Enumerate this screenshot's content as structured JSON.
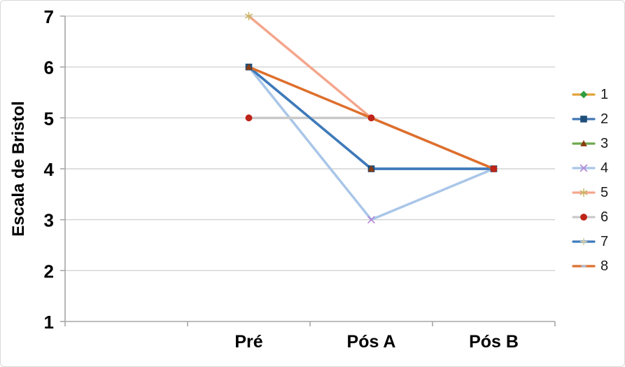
{
  "frame": {
    "background": "#FFFFFF",
    "border_color": "#D8D8D8"
  },
  "chart_data": {
    "type": "line",
    "title": "",
    "xlabel": "",
    "ylabel": "Escala de Bristol",
    "categories": [
      "",
      "Pré",
      "Pós A",
      "Pós B"
    ],
    "ylim": [
      1,
      7
    ],
    "yticks": [
      1,
      2,
      3,
      4,
      5,
      6,
      7
    ],
    "grid": "horizontal",
    "legend_position": "right",
    "axis_color": "#A6A6A6",
    "grid_color": "#C9C9C9",
    "text_color": "#000000",
    "legend_text_color": "#1A1A1A",
    "series": [
      {
        "name": "1",
        "line": "#E2A33B",
        "marker": "diamond",
        "marker_color": "#2F9E3E",
        "values": [
          null,
          null,
          null,
          null
        ],
        "line_visible": false,
        "markers_at": []
      },
      {
        "name": "2",
        "line": "#4176B4",
        "marker": "square",
        "marker_color": "#1F4E79",
        "values": [
          null,
          6,
          4,
          4
        ],
        "line_visible": true,
        "markers_at": [
          1,
          2,
          3
        ]
      },
      {
        "name": "3",
        "line": "#6FA84F",
        "marker": "triangle",
        "marker_color": "#8A3A0E",
        "values": [
          null,
          6,
          4,
          4
        ],
        "line_visible": false,
        "markers_at": [
          1,
          2,
          3
        ]
      },
      {
        "name": "4",
        "line": "#A9C6E8",
        "marker": "x",
        "marker_color": "#B287D7",
        "values": [
          null,
          6,
          3,
          4
        ],
        "line_visible": true,
        "markers_at": [
          2
        ]
      },
      {
        "name": "5",
        "line": "#F4A68D",
        "marker": "asterisk",
        "marker_color": "#C8B464",
        "values": [
          null,
          7,
          5,
          4
        ],
        "line_visible": true,
        "markers_at": [
          1
        ]
      },
      {
        "name": "6",
        "line": "#C9C9C9",
        "marker": "circle",
        "marker_color": "#BE2417",
        "values": [
          null,
          5,
          5,
          4
        ],
        "line_visible": true,
        "markers_at": [
          1,
          2,
          3
        ]
      },
      {
        "name": "7",
        "line": "#3E7AB9",
        "marker": "plus",
        "marker_color": "#D9CFA4",
        "values": [
          null,
          6,
          4,
          4
        ],
        "line_visible": true,
        "markers_at": []
      },
      {
        "name": "8",
        "line": "#DE6F2C",
        "marker": "dash",
        "marker_color": "#A9BCD6",
        "values": [
          null,
          6,
          5,
          4
        ],
        "line_visible": true,
        "markers_at": []
      }
    ]
  }
}
